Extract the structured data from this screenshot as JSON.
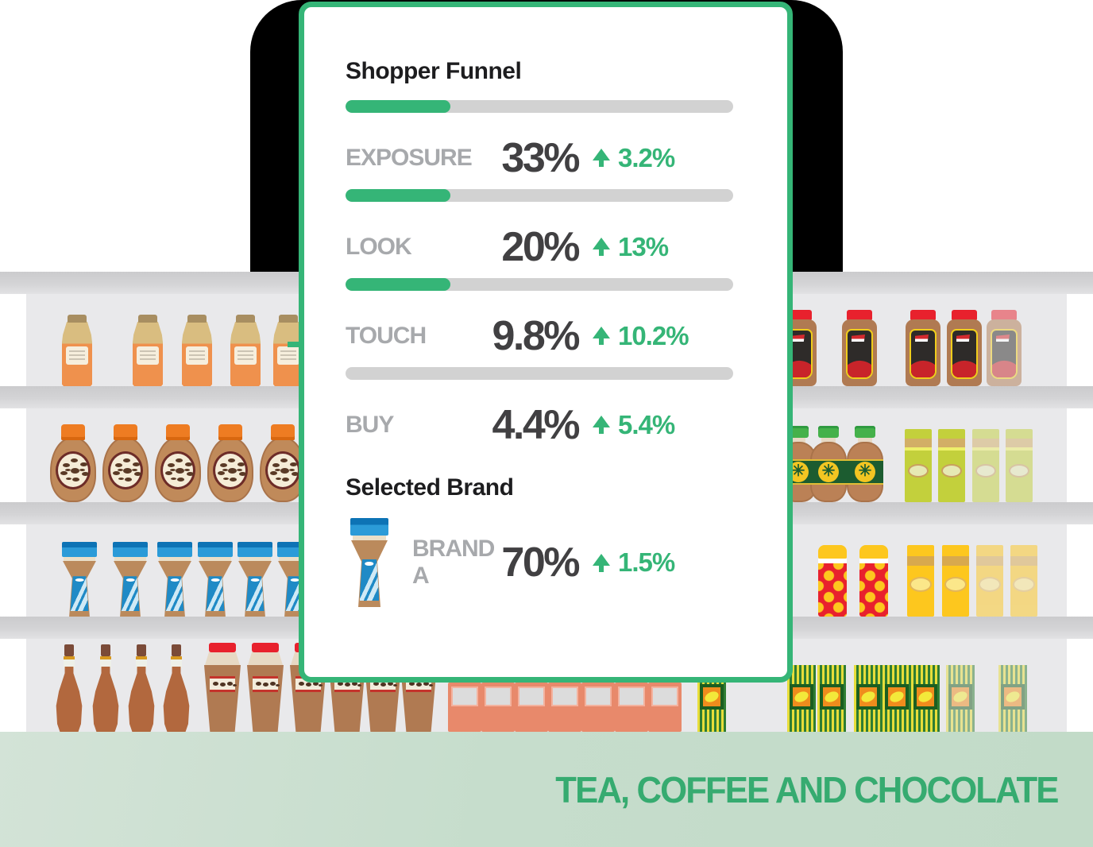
{
  "card": {
    "title": "Shopper Funnel",
    "funnel": [
      {
        "label": "EXPOSURE",
        "value": "33%",
        "change": "3.2%",
        "trend": "up",
        "fill_pct": 27
      },
      {
        "label": "LOOK",
        "value": "20%",
        "change": "13%",
        "trend": "up",
        "fill_pct": 27
      },
      {
        "label": "TOUCH",
        "value": "9.8%",
        "change": "10.2%",
        "trend": "up",
        "fill_pct": 27
      },
      {
        "label": "BUY",
        "value": "4.4%",
        "change": "5.4%",
        "trend": "up",
        "fill_pct": 0
      }
    ],
    "selected_brand": {
      "heading": "Selected Brand",
      "brand": "BRAND A",
      "value": "70%",
      "change": "1.5%",
      "trend": "up",
      "icon": "coffee-jar-icon"
    }
  },
  "banner": {
    "label": "TEA, COFFEE AND CHOCOLATE"
  },
  "colors": {
    "accent_green": "#35b577",
    "value_dark": "#414042",
    "label_gray": "#a7a9ac",
    "bar_track_gray": "#d2d2d2",
    "banner_bg": "#c5dccb",
    "banner_text": "#36ab70",
    "card_border": "#35b577",
    "backdrop_black": "#000000"
  },
  "shelf": {
    "rows": [
      {
        "id": "left-syrup-bottles",
        "type": "orange-bottle",
        "count": 5,
        "faded_from": null
      },
      {
        "id": "left-bean-jars",
        "type": "bean-jar",
        "count": 5,
        "faded_from": null
      },
      {
        "id": "left-instant-coffee",
        "type": "hourglass-jar",
        "count": 6,
        "faded_from": null
      },
      {
        "id": "left-slim-bottles",
        "type": "slim-bottle",
        "count": 4,
        "faded_from": null
      },
      {
        "id": "left-redcap-jars",
        "type": "redcap-jar",
        "count": 6,
        "faded_from": null
      },
      {
        "id": "middle-salmon-boxes",
        "type": "salmon-box",
        "count": 7,
        "faded_from": null
      },
      {
        "id": "right-coffee-jars",
        "type": "brown-jar",
        "count": 5,
        "faded_from": 4
      },
      {
        "id": "right-sauce-bottles",
        "type": "sauce-bottle",
        "count": 3,
        "faded_from": null
      },
      {
        "id": "right-green-cartons",
        "type": "green-carton",
        "count": 4,
        "faded_from": 2
      },
      {
        "id": "right-polka-tins",
        "type": "polka-tin",
        "count": 2,
        "faded_from": null
      },
      {
        "id": "right-yellow-cartons",
        "type": "yellow-carton",
        "count": 4,
        "faded_from": 2
      },
      {
        "id": "right-lemon-boxes",
        "type": "lemon-box",
        "count": 8,
        "faded_from": 6
      }
    ]
  }
}
